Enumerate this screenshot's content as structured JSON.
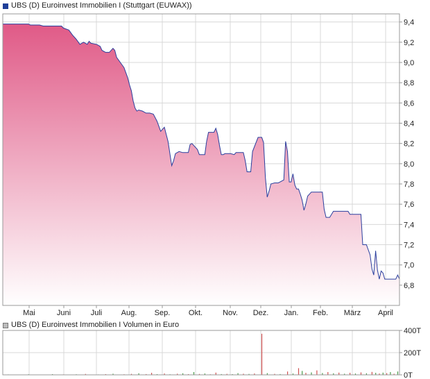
{
  "legend": {
    "price_label": "UBS (D) Euroinvest Immobilien I (Stuttgart (EUWAX))",
    "volume_label": "UBS (D) Euroinvest Immobilien I Volumen in Euro"
  },
  "colors": {
    "line": "#2a3f9e",
    "fill_top": "#e05a87",
    "fill_bottom": "#ffffff",
    "grid": "#d8d8d8",
    "frame": "#999999",
    "volume_red": "#d05050",
    "volume_green": "#4a9a4a"
  },
  "chart_data": [
    {
      "type": "area",
      "title": "UBS (D) Euroinvest Immobilien I (Stuttgart (EUWAX))",
      "x_unit": "days from start of series",
      "x_categories": [
        "Mai",
        "Juni",
        "Juli",
        "Aug.",
        "Sep.",
        "Okt.",
        "Nov.",
        "Dez.",
        "Jan.",
        "Feb.",
        "März",
        "April"
      ],
      "y_ticks": [
        "9,4",
        "9,2",
        "9,0",
        "8,8",
        "8,6",
        "8,4",
        "8,2",
        "8,0",
        "7,8",
        "7,6",
        "7,4",
        "7,2",
        "7,0",
        "6,8"
      ],
      "ylim": [
        6.6,
        9.48
      ],
      "grid": true,
      "series": [
        {
          "name": "UBS (D) Euroinvest Immobilien I",
          "points": [
            [
              0,
              9.38
            ],
            [
              14,
              9.38
            ],
            [
              15,
              9.37
            ],
            [
              20,
              9.37
            ],
            [
              22,
              9.36
            ],
            [
              32,
              9.36
            ],
            [
              33,
              9.34
            ],
            [
              36,
              9.32
            ],
            [
              38,
              9.27
            ],
            [
              40,
              9.23
            ],
            [
              42,
              9.18
            ],
            [
              44,
              9.2
            ],
            [
              46,
              9.18
            ],
            [
              47,
              9.21
            ],
            [
              48,
              9.19
            ],
            [
              51,
              9.18
            ],
            [
              53,
              9.16
            ],
            [
              54,
              9.12
            ],
            [
              56,
              9.1
            ],
            [
              58,
              9.1
            ],
            [
              60,
              9.14
            ],
            [
              61,
              9.12
            ],
            [
              62,
              9.05
            ],
            [
              64,
              9.0
            ],
            [
              66,
              8.95
            ],
            [
              68,
              8.85
            ],
            [
              69,
              8.78
            ],
            [
              70,
              8.72
            ],
            [
              71,
              8.62
            ],
            [
              72,
              8.55
            ],
            [
              73,
              8.52
            ],
            [
              74,
              8.53
            ],
            [
              76,
              8.52
            ],
            [
              78,
              8.5
            ],
            [
              80,
              8.5
            ],
            [
              82,
              8.49
            ],
            [
              84,
              8.42
            ],
            [
              86,
              8.32
            ],
            [
              88,
              8.36
            ],
            [
              90,
              8.22
            ],
            [
              92,
              7.98
            ],
            [
              93,
              8.03
            ],
            [
              94,
              8.1
            ],
            [
              96,
              8.12
            ],
            [
              98,
              8.11
            ],
            [
              101,
              8.11
            ],
            [
              102,
              8.19
            ],
            [
              103,
              8.2
            ],
            [
              104,
              8.18
            ],
            [
              106,
              8.14
            ],
            [
              107,
              8.09
            ],
            [
              110,
              8.09
            ],
            [
              111,
              8.22
            ],
            [
              112,
              8.31
            ],
            [
              115,
              8.31
            ],
            [
              116,
              8.35
            ],
            [
              117,
              8.29
            ],
            [
              118,
              8.18
            ],
            [
              119,
              8.09
            ],
            [
              120,
              8.09
            ],
            [
              121,
              8.1
            ],
            [
              123,
              8.1
            ],
            [
              124,
              8.1
            ],
            [
              126,
              8.09
            ],
            [
              127,
              8.11
            ],
            [
              131,
              8.11
            ],
            [
              132,
              8.03
            ],
            [
              133,
              7.92
            ],
            [
              135,
              7.92
            ],
            [
              136,
              8.12
            ],
            [
              139,
              8.26
            ],
            [
              141,
              8.26
            ],
            [
              142,
              8.21
            ],
            [
              143,
              7.86
            ],
            [
              144,
              7.67
            ],
            [
              145,
              7.73
            ],
            [
              146,
              7.8
            ],
            [
              148,
              7.81
            ],
            [
              150,
              7.81
            ],
            [
              151,
              7.82
            ],
            [
              153,
              7.84
            ],
            [
              154,
              8.22
            ],
            [
              155,
              8.12
            ],
            [
              156,
              7.82
            ],
            [
              157,
              7.82
            ],
            [
              158,
              7.9
            ],
            [
              159,
              7.79
            ],
            [
              160,
              7.75
            ],
            [
              161,
              7.75
            ],
            [
              162,
              7.7
            ],
            [
              163,
              7.64
            ],
            [
              164,
              7.54
            ],
            [
              165,
              7.6
            ],
            [
              166,
              7.68
            ],
            [
              168,
              7.72
            ],
            [
              170,
              7.72
            ],
            [
              174,
              7.72
            ],
            [
              175,
              7.55
            ],
            [
              176,
              7.47
            ],
            [
              178,
              7.47
            ],
            [
              180,
              7.53
            ],
            [
              187,
              7.53
            ],
            [
              188,
              7.53
            ],
            [
              189,
              7.5
            ],
            [
              195,
              7.5
            ],
            [
              196,
              7.2
            ],
            [
              198,
              7.2
            ],
            [
              200,
              7.1
            ],
            [
              201,
              6.96
            ],
            [
              202,
              6.9
            ],
            [
              203,
              7.14
            ],
            [
              204,
              6.95
            ],
            [
              205,
              6.86
            ],
            [
              206,
              6.94
            ],
            [
              207,
              6.92
            ],
            [
              208,
              6.86
            ],
            [
              210,
              6.86
            ],
            [
              214,
              6.86
            ],
            [
              215,
              6.9
            ],
            [
              216,
              6.86
            ]
          ]
        }
      ]
    },
    {
      "type": "bar",
      "title": "UBS (D) Euroinvest Immobilien I Volumen in Euro",
      "x_unit": "days from start of series",
      "y_ticks": [
        "400T",
        "200T",
        "0T"
      ],
      "ylim": [
        0,
        400
      ],
      "y_unit": "T (thousand euro)",
      "grid": true,
      "series": [
        {
          "name": "Volumen in Euro",
          "bars": [
            {
              "x": 3,
              "v": 4,
              "c": "g"
            },
            {
              "x": 9,
              "v": 3,
              "c": "r"
            },
            {
              "x": 14,
              "v": 5,
              "c": "g"
            },
            {
              "x": 21,
              "v": 3,
              "c": "r"
            },
            {
              "x": 27,
              "v": 6,
              "c": "g"
            },
            {
              "x": 33,
              "v": 4,
              "c": "r"
            },
            {
              "x": 40,
              "v": 5,
              "c": "g"
            },
            {
              "x": 45,
              "v": 8,
              "c": "r"
            },
            {
              "x": 52,
              "v": 4,
              "c": "g"
            },
            {
              "x": 56,
              "v": 6,
              "c": "r"
            },
            {
              "x": 60,
              "v": 10,
              "c": "g"
            },
            {
              "x": 66,
              "v": 5,
              "c": "r"
            },
            {
              "x": 70,
              "v": 9,
              "c": "r"
            },
            {
              "x": 74,
              "v": 14,
              "c": "g"
            },
            {
              "x": 78,
              "v": 7,
              "c": "r"
            },
            {
              "x": 81,
              "v": 18,
              "c": "r"
            },
            {
              "x": 84,
              "v": 6,
              "c": "g"
            },
            {
              "x": 88,
              "v": 12,
              "c": "r"
            },
            {
              "x": 91,
              "v": 5,
              "c": "g"
            },
            {
              "x": 95,
              "v": 10,
              "c": "r"
            },
            {
              "x": 98,
              "v": 14,
              "c": "g"
            },
            {
              "x": 101,
              "v": 6,
              "c": "r"
            },
            {
              "x": 104,
              "v": 25,
              "c": "g"
            },
            {
              "x": 107,
              "v": 8,
              "c": "r"
            },
            {
              "x": 110,
              "v": 12,
              "c": "g"
            },
            {
              "x": 113,
              "v": 5,
              "c": "r"
            },
            {
              "x": 116,
              "v": 20,
              "c": "r"
            },
            {
              "x": 119,
              "v": 7,
              "c": "g"
            },
            {
              "x": 122,
              "v": 9,
              "c": "r"
            },
            {
              "x": 125,
              "v": 6,
              "c": "g"
            },
            {
              "x": 128,
              "v": 15,
              "c": "g"
            },
            {
              "x": 131,
              "v": 10,
              "c": "r"
            },
            {
              "x": 134,
              "v": 8,
              "c": "g"
            },
            {
              "x": 137,
              "v": 12,
              "c": "r"
            },
            {
              "x": 141,
              "v": 370,
              "c": "r"
            },
            {
              "x": 144,
              "v": 15,
              "c": "g"
            },
            {
              "x": 148,
              "v": 9,
              "c": "r"
            },
            {
              "x": 151,
              "v": 7,
              "c": "g"
            },
            {
              "x": 155,
              "v": 30,
              "c": "r"
            },
            {
              "x": 158,
              "v": 12,
              "c": "g"
            },
            {
              "x": 161,
              "v": 60,
              "c": "r"
            },
            {
              "x": 163,
              "v": 35,
              "c": "g"
            },
            {
              "x": 165,
              "v": 18,
              "c": "r"
            },
            {
              "x": 168,
              "v": 22,
              "c": "g"
            },
            {
              "x": 171,
              "v": 40,
              "c": "r"
            },
            {
              "x": 174,
              "v": 16,
              "c": "g"
            },
            {
              "x": 177,
              "v": 25,
              "c": "r"
            },
            {
              "x": 180,
              "v": 14,
              "c": "g"
            },
            {
              "x": 183,
              "v": 20,
              "c": "r"
            },
            {
              "x": 186,
              "v": 10,
              "c": "g"
            },
            {
              "x": 189,
              "v": 18,
              "c": "r"
            },
            {
              "x": 192,
              "v": 12,
              "c": "g"
            },
            {
              "x": 195,
              "v": 22,
              "c": "r"
            },
            {
              "x": 198,
              "v": 14,
              "c": "g"
            },
            {
              "x": 201,
              "v": 26,
              "c": "r"
            },
            {
              "x": 203,
              "v": 18,
              "c": "g"
            },
            {
              "x": 205,
              "v": 12,
              "c": "r"
            },
            {
              "x": 207,
              "v": 20,
              "c": "g"
            },
            {
              "x": 209,
              "v": 15,
              "c": "r"
            },
            {
              "x": 211,
              "v": 25,
              "c": "g"
            },
            {
              "x": 213,
              "v": 10,
              "c": "r"
            },
            {
              "x": 215,
              "v": 30,
              "c": "g"
            }
          ]
        }
      ]
    }
  ]
}
